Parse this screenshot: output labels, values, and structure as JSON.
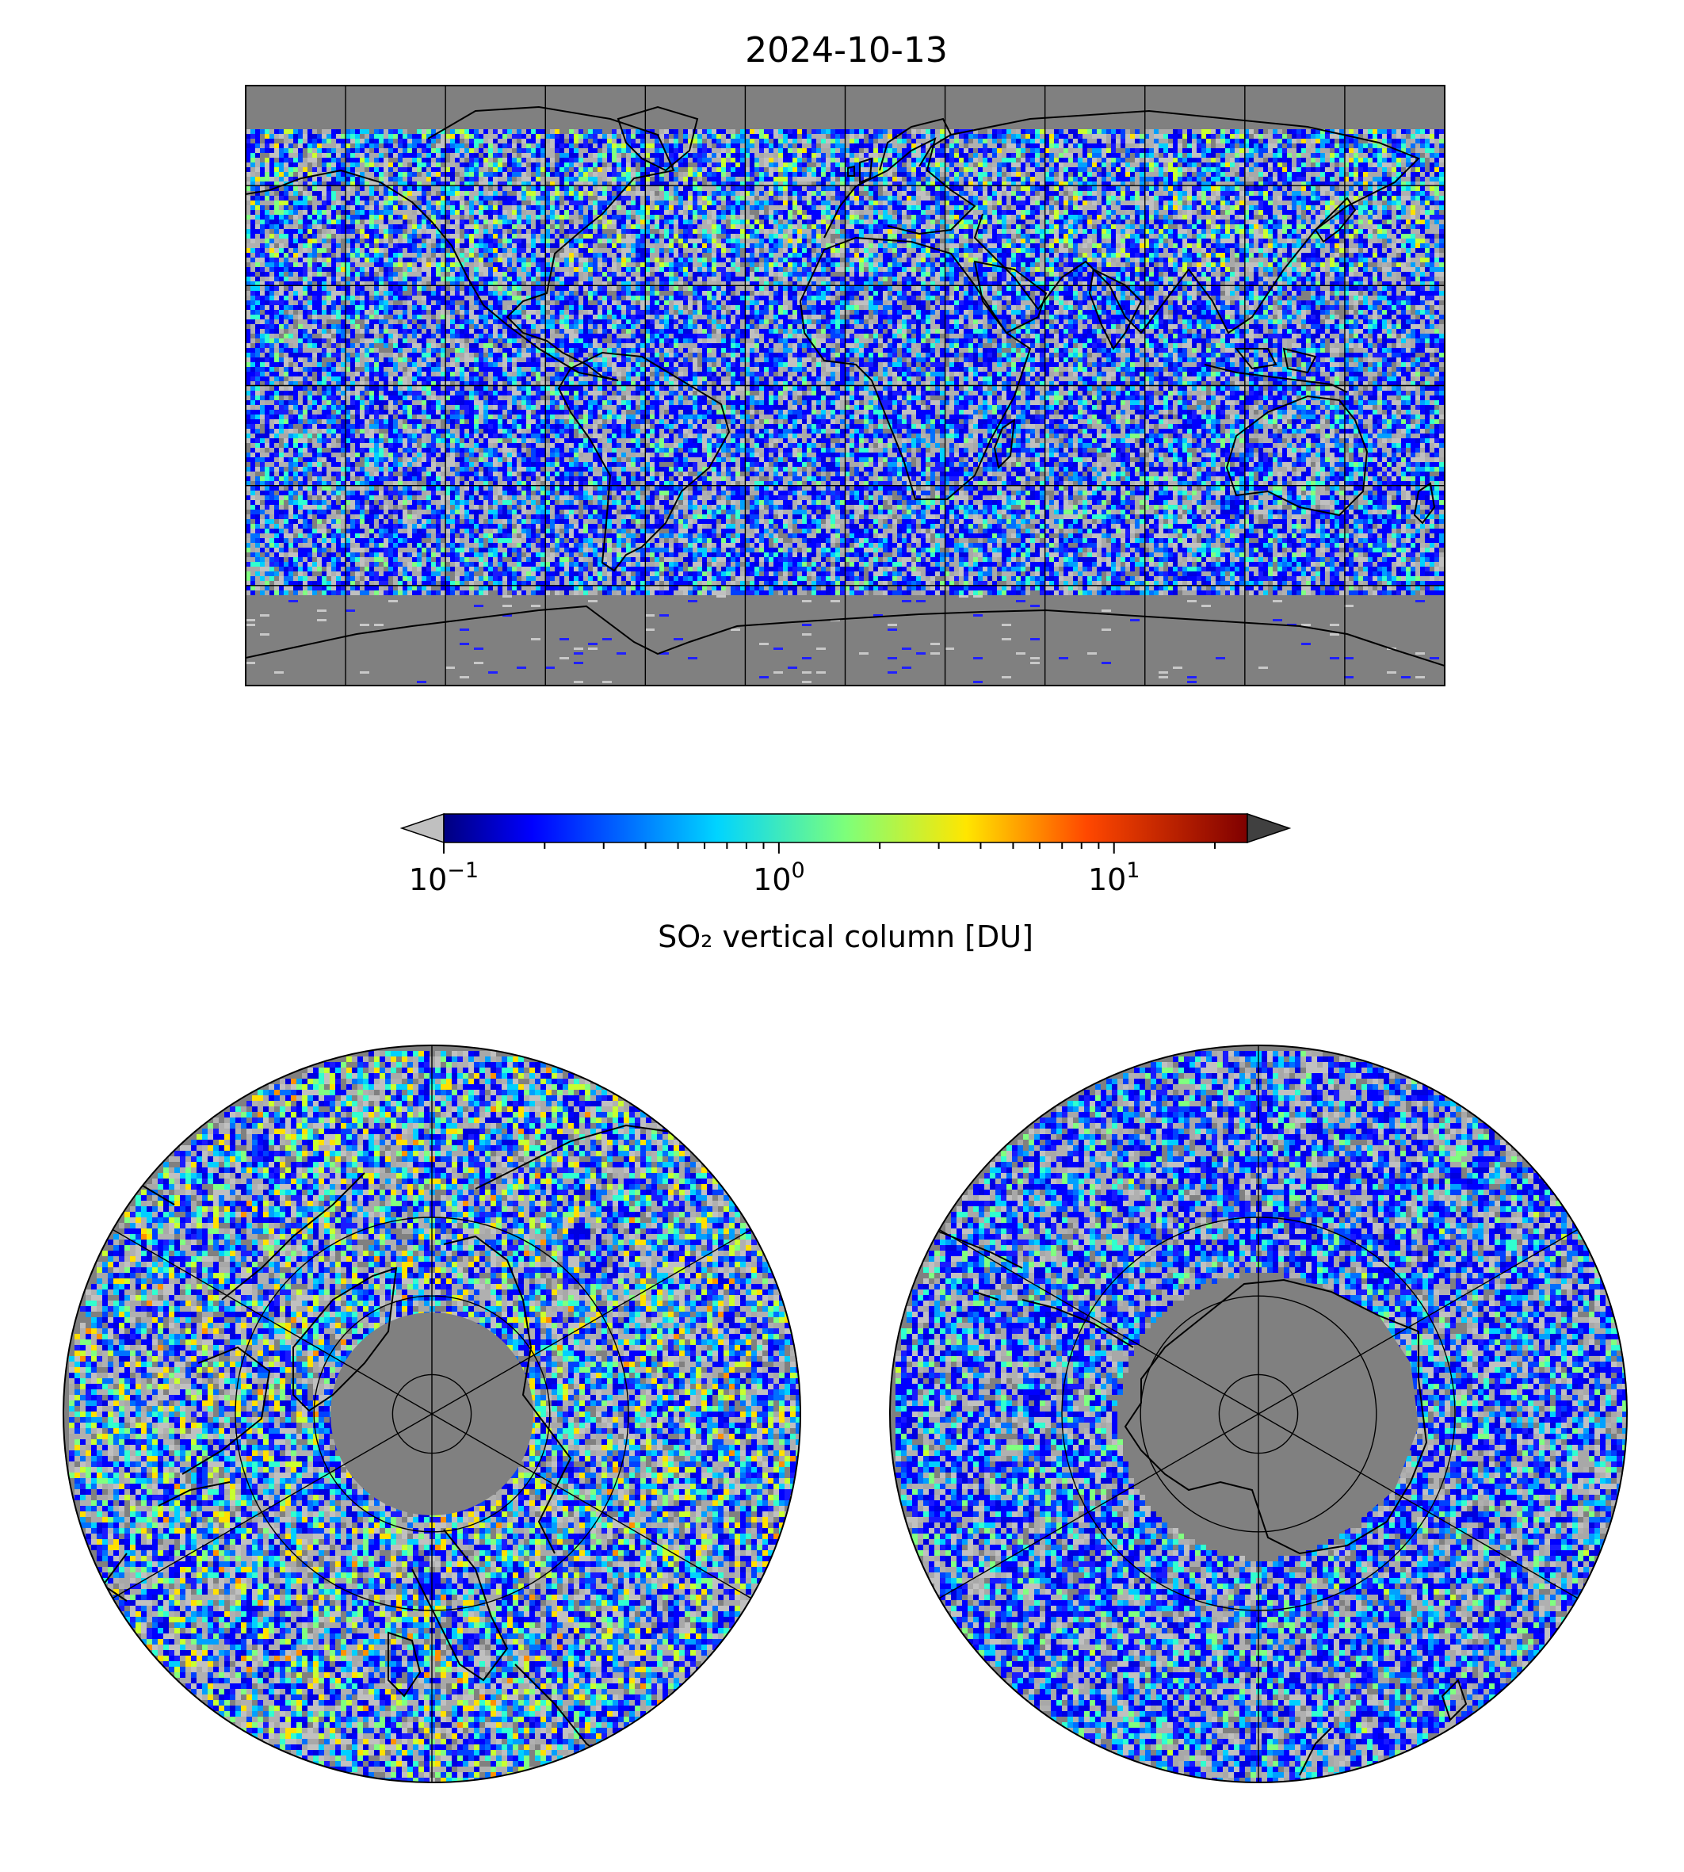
{
  "figure": {
    "date_title": "2024-10-13"
  },
  "colorbar": {
    "label": "SO₂ vertical column [DU]",
    "scale": "log",
    "range": [
      0.1,
      25
    ],
    "ticks": [
      {
        "value": 0.1,
        "base": "10",
        "exp": "−1"
      },
      {
        "value": 1,
        "base": "10",
        "exp": "0"
      },
      {
        "value": 10,
        "base": "10",
        "exp": "1"
      }
    ],
    "extend": "both",
    "under_color": "#c0c0c0",
    "over_color": "#404040",
    "colormap": "jet",
    "colormap_stops": [
      "#00007f",
      "#0000ff",
      "#007fff",
      "#00ffff",
      "#7fff7f",
      "#ffff00",
      "#ff7f00",
      "#ff0000",
      "#7f0000"
    ]
  },
  "maps": {
    "background_color": "#808080",
    "gridline_color": "#000000",
    "global": {
      "projection": "plate-carree",
      "lon_gridlines": [
        -150,
        -120,
        -90,
        -60,
        -30,
        0,
        30,
        60,
        90,
        120,
        150
      ],
      "lat_gridlines": [
        -60,
        -30,
        0,
        30,
        60
      ]
    },
    "north_polar": {
      "projection": "north-polar-stereographic",
      "lat_circles": [
        80,
        60,
        40
      ]
    },
    "south_polar": {
      "projection": "south-polar-stereographic",
      "lat_circles": [
        -80,
        -60,
        -40
      ]
    }
  }
}
